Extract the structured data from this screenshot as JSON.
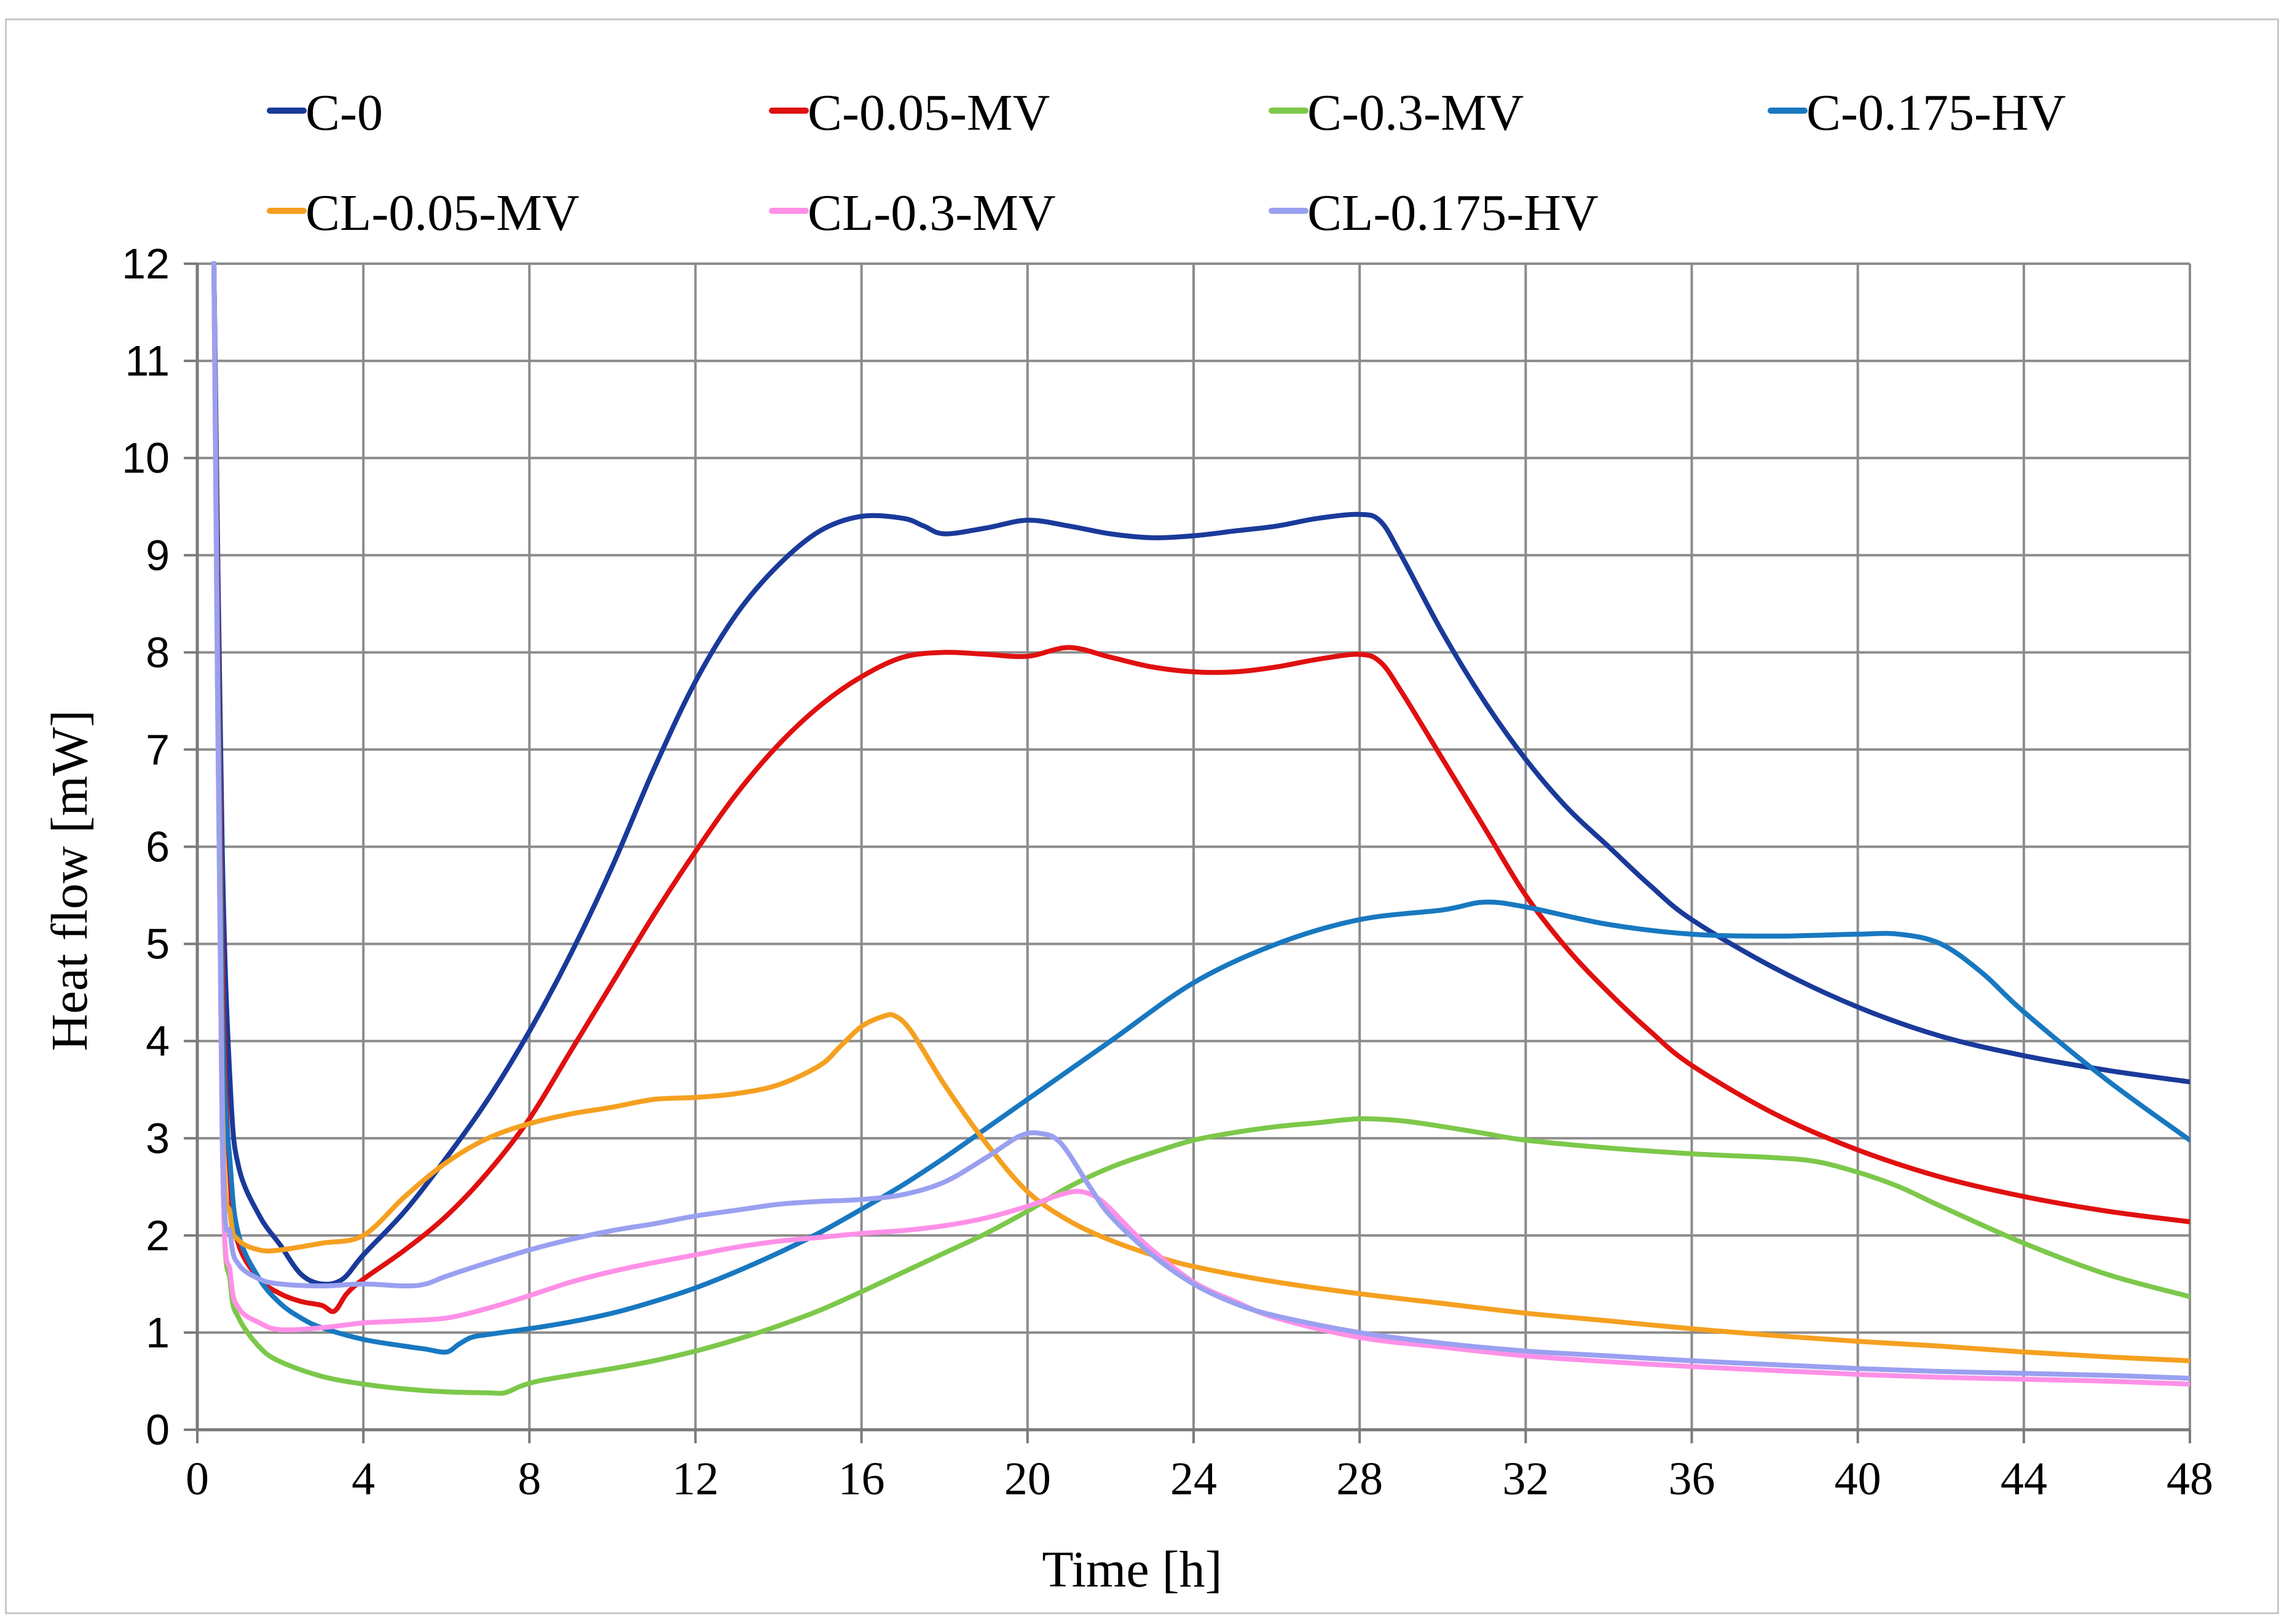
{
  "chart_data": {
    "type": "line",
    "title": "",
    "xlabel": "Time [h]",
    "ylabel": "Heat flow  [mW]",
    "xlim": [
      0,
      48
    ],
    "ylim": [
      0,
      12
    ],
    "xticks": [
      0,
      4,
      8,
      12,
      16,
      20,
      24,
      28,
      32,
      36,
      40,
      44,
      48
    ],
    "yticks": [
      0,
      1,
      2,
      3,
      4,
      5,
      6,
      7,
      8,
      9,
      10,
      11,
      12
    ],
    "grid": true,
    "legend_position": "top",
    "series": [
      {
        "name": "C-0",
        "color": "#1a3a9a",
        "x": [
          0.4,
          0.6,
          0.8,
          1.0,
          1.5,
          2.0,
          2.5,
          3.0,
          3.5,
          4.0,
          5.0,
          6.0,
          7.0,
          8.0,
          9.0,
          10.0,
          11.0,
          12.0,
          13.0,
          14.0,
          15.0,
          16.0,
          17.0,
          17.5,
          18.0,
          19.0,
          20.0,
          21.0,
          22.0,
          23.0,
          24.0,
          25.0,
          26.0,
          27.0,
          28.0,
          28.5,
          29.0,
          30.0,
          31.0,
          32.0,
          33.0,
          34.0,
          35.0,
          36.0,
          38.0,
          40.0,
          42.0,
          44.0,
          46.0,
          48.0
        ],
        "values": [
          12,
          6.0,
          3.5,
          2.7,
          2.2,
          1.9,
          1.6,
          1.5,
          1.55,
          1.8,
          2.25,
          2.8,
          3.4,
          4.1,
          4.9,
          5.8,
          6.8,
          7.7,
          8.4,
          8.9,
          9.25,
          9.4,
          9.38,
          9.3,
          9.22,
          9.28,
          9.36,
          9.3,
          9.22,
          9.18,
          9.2,
          9.25,
          9.3,
          9.38,
          9.42,
          9.35,
          9.0,
          8.2,
          7.5,
          6.9,
          6.4,
          6.0,
          5.6,
          5.25,
          4.75,
          4.35,
          4.05,
          3.85,
          3.7,
          3.58
        ]
      },
      {
        "name": "C-0.05-MV",
        "color": "#e01010",
        "x": [
          0.4,
          0.6,
          0.8,
          1.0,
          1.5,
          2.0,
          2.5,
          3.0,
          3.3,
          3.6,
          4.0,
          5.0,
          6.0,
          7.0,
          8.0,
          9.0,
          10.0,
          11.0,
          12.0,
          13.0,
          14.0,
          15.0,
          16.0,
          17.0,
          18.0,
          19.0,
          20.0,
          21.0,
          22.0,
          23.0,
          24.0,
          25.0,
          26.0,
          27.0,
          28.0,
          28.5,
          29.0,
          30.0,
          31.0,
          32.0,
          33.0,
          34.0,
          35.0,
          36.0,
          38.0,
          40.0,
          42.0,
          44.0,
          46.0,
          48.0
        ],
        "values": [
          12,
          5.0,
          2.5,
          1.9,
          1.55,
          1.4,
          1.32,
          1.28,
          1.22,
          1.4,
          1.55,
          1.85,
          2.2,
          2.65,
          3.2,
          3.9,
          4.6,
          5.3,
          5.95,
          6.55,
          7.05,
          7.45,
          7.75,
          7.95,
          8.0,
          7.98,
          7.96,
          8.05,
          7.95,
          7.85,
          7.8,
          7.8,
          7.85,
          7.93,
          7.98,
          7.9,
          7.6,
          6.9,
          6.2,
          5.5,
          4.95,
          4.5,
          4.1,
          3.75,
          3.25,
          2.88,
          2.6,
          2.4,
          2.25,
          2.14
        ]
      },
      {
        "name": "C-0.3-MV",
        "color": "#7cc84a",
        "x": [
          0.4,
          0.6,
          0.8,
          1.0,
          1.5,
          2.0,
          3.0,
          4.0,
          5.0,
          6.0,
          7.0,
          7.4,
          7.8,
          8.2,
          9.0,
          10.0,
          11.0,
          12.0,
          13.0,
          14.0,
          15.0,
          16.0,
          17.0,
          18.0,
          19.0,
          20.0,
          21.0,
          22.0,
          23.0,
          24.0,
          25.0,
          26.0,
          27.0,
          28.0,
          29.0,
          30.0,
          31.0,
          32.0,
          34.0,
          36.0,
          38.0,
          39.0,
          40.0,
          41.0,
          42.0,
          44.0,
          46.0,
          48.0
        ],
        "values": [
          12,
          3.0,
          1.5,
          1.15,
          0.85,
          0.7,
          0.55,
          0.47,
          0.42,
          0.39,
          0.38,
          0.38,
          0.45,
          0.5,
          0.56,
          0.63,
          0.71,
          0.81,
          0.93,
          1.07,
          1.23,
          1.42,
          1.62,
          1.82,
          2.02,
          2.25,
          2.5,
          2.7,
          2.85,
          2.98,
          3.06,
          3.12,
          3.16,
          3.2,
          3.18,
          3.12,
          3.05,
          2.98,
          2.9,
          2.84,
          2.8,
          2.76,
          2.65,
          2.5,
          2.3,
          1.92,
          1.6,
          1.37
        ]
      },
      {
        "name": "C-0.175-HV",
        "color": "#1878c0",
        "x": [
          0.4,
          0.6,
          0.8,
          1.0,
          1.5,
          2.0,
          2.5,
          3.0,
          4.0,
          5.0,
          5.5,
          6.0,
          6.3,
          6.6,
          7.0,
          8.0,
          9.0,
          10.0,
          11.0,
          12.0,
          13.0,
          14.0,
          15.0,
          16.0,
          17.0,
          18.0,
          19.0,
          20.0,
          22.0,
          24.0,
          26.0,
          28.0,
          30.0,
          31.0,
          32.0,
          34.0,
          36.0,
          38.0,
          40.0,
          41.0,
          42.0,
          43.0,
          44.0,
          46.0,
          48.0
        ],
        "values": [
          12,
          4.5,
          2.7,
          2.0,
          1.55,
          1.3,
          1.15,
          1.05,
          0.93,
          0.86,
          0.83,
          0.8,
          0.88,
          0.95,
          0.98,
          1.04,
          1.11,
          1.2,
          1.32,
          1.46,
          1.63,
          1.82,
          2.03,
          2.27,
          2.52,
          2.8,
          3.1,
          3.4,
          4.0,
          4.6,
          5.0,
          5.25,
          5.35,
          5.43,
          5.38,
          5.2,
          5.1,
          5.08,
          5.1,
          5.1,
          5.0,
          4.7,
          4.3,
          3.6,
          2.98
        ]
      },
      {
        "name": "CL-0.05-MV",
        "color": "#f5a020",
        "x": [
          0.4,
          0.6,
          0.8,
          1.0,
          1.5,
          2.0,
          3.0,
          4.0,
          5.0,
          6.0,
          7.0,
          8.0,
          9.0,
          10.0,
          11.0,
          12.0,
          13.0,
          14.0,
          15.0,
          15.5,
          16.0,
          16.5,
          16.8,
          17.2,
          18.0,
          19.0,
          20.0,
          21.0,
          22.0,
          23.0,
          24.0,
          26.0,
          28.0,
          30.0,
          32.0,
          34.0,
          36.0,
          38.0,
          40.0,
          42.0,
          44.0,
          46.0,
          48.0
        ],
        "values": [
          12,
          3.5,
          2.2,
          1.95,
          1.85,
          1.85,
          1.92,
          2.0,
          2.4,
          2.75,
          3.0,
          3.15,
          3.25,
          3.32,
          3.4,
          3.42,
          3.46,
          3.55,
          3.75,
          3.95,
          4.15,
          4.25,
          4.26,
          4.1,
          3.55,
          2.95,
          2.45,
          2.15,
          1.95,
          1.8,
          1.68,
          1.52,
          1.4,
          1.3,
          1.2,
          1.12,
          1.04,
          0.97,
          0.91,
          0.86,
          0.8,
          0.75,
          0.71
        ]
      },
      {
        "name": "CL-0.3-MV",
        "color": "#ff90e8",
        "x": [
          0.4,
          0.6,
          0.8,
          1.0,
          1.5,
          2.0,
          3.0,
          4.0,
          5.0,
          6.0,
          7.0,
          8.0,
          9.0,
          10.0,
          11.0,
          12.0,
          13.0,
          14.0,
          15.0,
          16.0,
          17.0,
          18.0,
          19.0,
          20.0,
          20.8,
          21.3,
          21.8,
          22.5,
          23.0,
          24.0,
          25.0,
          26.0,
          28.0,
          30.0,
          32.0,
          34.0,
          36.0,
          38.0,
          40.0,
          42.0,
          44.0,
          46.0,
          48.0
        ],
        "values": [
          12,
          3.0,
          1.6,
          1.25,
          1.1,
          1.03,
          1.05,
          1.1,
          1.12,
          1.15,
          1.25,
          1.38,
          1.52,
          1.63,
          1.72,
          1.8,
          1.88,
          1.94,
          1.98,
          2.02,
          2.05,
          2.1,
          2.18,
          2.3,
          2.42,
          2.45,
          2.35,
          2.05,
          1.85,
          1.52,
          1.32,
          1.15,
          0.95,
          0.85,
          0.76,
          0.7,
          0.65,
          0.61,
          0.57,
          0.54,
          0.52,
          0.5,
          0.47
        ]
      },
      {
        "name": "CL-0.175-HV",
        "color": "#9aa0f0",
        "x": [
          0.4,
          0.6,
          0.8,
          1.0,
          1.5,
          2.0,
          3.0,
          4.0,
          5.0,
          5.5,
          6.0,
          7.0,
          8.0,
          9.0,
          10.0,
          11.0,
          12.0,
          13.0,
          14.0,
          15.0,
          16.0,
          17.0,
          18.0,
          19.0,
          19.8,
          20.3,
          20.8,
          21.5,
          22.0,
          23.0,
          24.0,
          25.0,
          26.0,
          28.0,
          30.0,
          32.0,
          34.0,
          36.0,
          38.0,
          40.0,
          42.0,
          44.0,
          46.0,
          48.0
        ],
        "values": [
          12,
          3.2,
          2.0,
          1.7,
          1.55,
          1.5,
          1.48,
          1.5,
          1.48,
          1.5,
          1.58,
          1.72,
          1.85,
          1.96,
          2.05,
          2.12,
          2.2,
          2.26,
          2.32,
          2.35,
          2.37,
          2.42,
          2.55,
          2.8,
          3.02,
          3.05,
          2.95,
          2.5,
          2.2,
          1.8,
          1.5,
          1.3,
          1.17,
          1.0,
          0.89,
          0.81,
          0.76,
          0.71,
          0.67,
          0.63,
          0.6,
          0.58,
          0.56,
          0.53
        ]
      }
    ]
  }
}
